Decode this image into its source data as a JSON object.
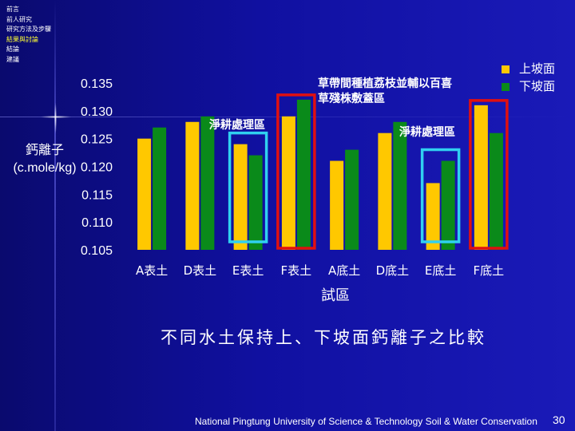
{
  "nav": {
    "items": [
      "前言",
      "前人研究",
      "研究方法及步驟",
      "結果與討論",
      "結論",
      "建議"
    ],
    "active_index": 3
  },
  "colors": {
    "upper": "#ffc800",
    "lower": "#0a8a1a",
    "box_red": "#e01010",
    "box_cyan": "#30d0f0",
    "active_nav": "#ffff33"
  },
  "chart_data": {
    "type": "bar",
    "categories": [
      "A表土",
      "D表土",
      "E表土",
      "F表土",
      "A底土",
      "D底土",
      "E底土",
      "F底土"
    ],
    "series": [
      {
        "name": "上坡面",
        "values": [
          0.125,
          0.128,
          0.124,
          0.129,
          0.121,
          0.126,
          0.117,
          0.131
        ]
      },
      {
        "name": "下坡面",
        "values": [
          0.127,
          0.129,
          0.122,
          0.132,
          0.123,
          0.128,
          0.121,
          0.126
        ]
      }
    ],
    "ylabel": "鈣離子\n(c.mole/kg)",
    "xlabel": "試區",
    "ylim": [
      0.105,
      0.135
    ],
    "yticks": [
      "0.135",
      "0.130",
      "0.125",
      "0.120",
      "0.115",
      "0.110",
      "0.105"
    ],
    "legend_position": "top-right",
    "grid": false,
    "highlights": [
      {
        "categories": [
          2
        ],
        "color": "cyan"
      },
      {
        "categories": [
          3
        ],
        "color": "red"
      },
      {
        "categories": [
          6
        ],
        "color": "cyan"
      },
      {
        "categories": [
          7
        ],
        "color": "red"
      }
    ]
  },
  "annotations": {
    "grass_line1": "草帶間種植荔枝並輔以百喜",
    "grass_line2": "草殘株敷蓋區",
    "clean_left": "淨耕處理區",
    "clean_right": "淨耕處理區"
  },
  "caption": "不同水土保持上、下坡面鈣離子之比較",
  "footer": "National Pingtung University of Science & Technology   Soil & Water Conservation",
  "page_number": "30"
}
